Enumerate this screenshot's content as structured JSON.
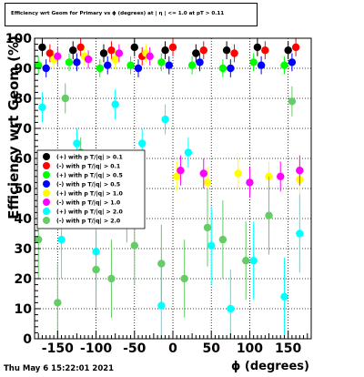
{
  "title": "Efficiency wrt Geom for Primary vs ϕ (degrees) at | η | <= 1.0 at pT > 0.11",
  "footer": "Thu May  6 15:22:01 2021",
  "chart_data": {
    "type": "scatter",
    "title": "Efficiency wrt Geom for Primary vs ϕ (degrees) at | η | <= 1.0 at pT > 0.11",
    "xlabel": "ϕ (degrees)",
    "ylabel": "Efficiency wrt Geom (%)",
    "xlim": [
      -180,
      180
    ],
    "ylim": [
      0,
      100
    ],
    "xticks": [
      -150,
      -100,
      -50,
      0,
      50,
      100,
      150
    ],
    "yticks": [
      0,
      10,
      20,
      30,
      40,
      50,
      60,
      70,
      80,
      90,
      100
    ],
    "grid": true,
    "legend_position": "left-middle",
    "series": [
      {
        "name": "(+) with p T/|q| > 0.1",
        "color": "#000000",
        "x": [
          -170,
          -130,
          -90,
          -50,
          -10,
          30,
          70,
          110,
          150
        ],
        "y": [
          97,
          96,
          95,
          97,
          96,
          95,
          96,
          97,
          96
        ]
      },
      {
        "name": "(-) with p T/|q| > 0.1",
        "color": "#ff0000",
        "x": [
          -160,
          -120,
          -80,
          -40,
          0,
          40,
          80,
          120,
          160
        ],
        "y": [
          95,
          97,
          96,
          94,
          97,
          96,
          95,
          96,
          97
        ]
      },
      {
        "name": "(+) with p T/|q| > 0.5",
        "color": "#00ff00",
        "x": [
          -175,
          -135,
          -95,
          -55,
          -15,
          25,
          65,
          105,
          145
        ],
        "y": [
          91,
          92,
          90,
          91,
          92,
          91,
          90,
          92,
          91
        ]
      },
      {
        "name": "(-) with p T/|q| > 0.5",
        "color": "#0000ff",
        "x": [
          -165,
          -125,
          -85,
          -45,
          -5,
          35,
          75,
          115,
          155
        ],
        "y": [
          90,
          92,
          91,
          90,
          91,
          92,
          90,
          91,
          92
        ]
      },
      {
        "name": "(+) with p T/|q| > 1.0",
        "color": "#ffff00",
        "x": [
          -155,
          -115,
          -75,
          -35,
          5,
          45,
          85,
          125,
          165
        ],
        "y": [
          93,
          94,
          93,
          95,
          54,
          52,
          55,
          54,
          53
        ]
      },
      {
        "name": "(-) with p T/|q| > 1.0",
        "color": "#ff00ff",
        "x": [
          -150,
          -110,
          -70,
          -30,
          10,
          40,
          100,
          140,
          165
        ],
        "y": [
          94,
          93,
          95,
          94,
          56,
          55,
          52,
          54,
          56
        ]
      },
      {
        "name": "(+) with p T/|q| > 2.0",
        "color": "#00ffff",
        "x": [
          -170,
          -145,
          -125,
          -100,
          -75,
          -40,
          -15,
          -10,
          20,
          50,
          75,
          105,
          145,
          165
        ],
        "y": [
          77,
          33,
          65,
          29,
          78,
          65,
          11,
          73,
          62,
          31,
          10,
          26,
          14,
          35
        ]
      },
      {
        "name": "(-) with p T/|q| > 2.0",
        "color": "#66cc66",
        "x": [
          -175,
          -150,
          -140,
          -120,
          -100,
          -80,
          -60,
          -50,
          -15,
          15,
          45,
          65,
          95,
          125,
          155
        ],
        "y": [
          33,
          12,
          80,
          62,
          23,
          20,
          45,
          31,
          25,
          20,
          37,
          33,
          26,
          41,
          79
        ]
      }
    ]
  }
}
